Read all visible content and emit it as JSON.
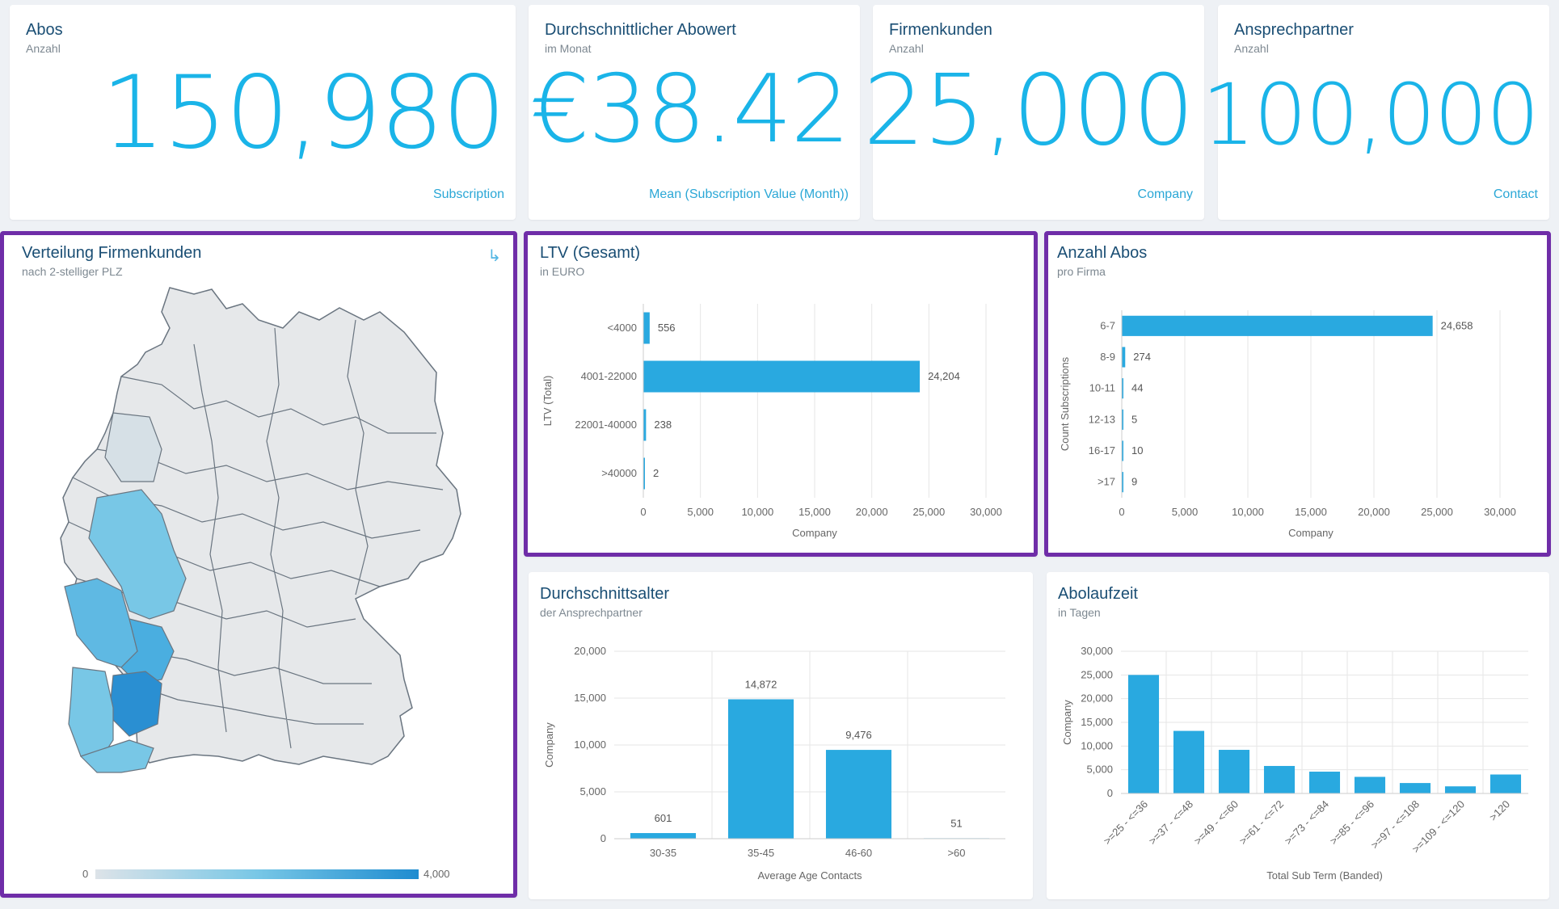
{
  "kpis": [
    {
      "title": "Abos",
      "subtitle": "Anzahl",
      "value": "150,980",
      "unit": "Subscription"
    },
    {
      "title": "Durchschnittlicher Abowert",
      "subtitle": "im Monat",
      "value": "€38.42",
      "unit": "Mean (Subscription Value (Month))"
    },
    {
      "title": "Firmenkunden",
      "subtitle": "Anzahl",
      "value": "25,000",
      "unit": "Company"
    },
    {
      "title": "Ansprechpartner",
      "subtitle": "Anzahl",
      "value": "100,000",
      "unit": "Contact"
    }
  ],
  "map": {
    "title": "Verteilung Firmenkunden",
    "subtitle": "nach 2-stelliger PLZ",
    "legend_min": "0",
    "legend_max": "4,000",
    "colors": {
      "low": "#dde3e8",
      "mid": "#78c7e6",
      "high": "#1e8cd0",
      "empty": "#e6e8ea",
      "stroke": "#6a7580"
    }
  },
  "panels": {
    "ltv": {
      "title": "LTV (Gesamt)",
      "subtitle": "in EURO"
    },
    "abos": {
      "title": "Anzahl Abos",
      "subtitle": "pro Firma"
    },
    "age": {
      "title": "Durchschnittsalter",
      "subtitle": "der Ansprechpartner"
    },
    "term": {
      "title": "Abolaufzeit",
      "subtitle": "in Tagen"
    }
  },
  "chart_data": [
    {
      "id": "ltv",
      "type": "bar",
      "orientation": "horizontal",
      "categories": [
        "<4000",
        "4001-22000",
        "22001-40000",
        ">40000"
      ],
      "values": [
        556,
        24204,
        238,
        2
      ],
      "labels": [
        "556",
        "24,204",
        "238",
        "2"
      ],
      "xlabel": "Company",
      "ylabel": "LTV (Total)",
      "xlim": [
        0,
        30000
      ],
      "ticks": [
        0,
        5000,
        10000,
        15000,
        20000,
        25000,
        30000
      ],
      "tick_labels": [
        "0",
        "5,000",
        "10,000",
        "15,000",
        "20,000",
        "25,000",
        "30,000"
      ]
    },
    {
      "id": "abos",
      "type": "bar",
      "orientation": "horizontal",
      "categories": [
        "6-7",
        "8-9",
        "10-11",
        "12-13",
        "16-17",
        ">17"
      ],
      "values": [
        24658,
        274,
        44,
        5,
        10,
        9
      ],
      "labels": [
        "24,658",
        "274",
        "44",
        "5",
        "10",
        "9"
      ],
      "xlabel": "Company",
      "ylabel": "Count Subscriptions",
      "xlim": [
        0,
        30000
      ],
      "ticks": [
        0,
        5000,
        10000,
        15000,
        20000,
        25000,
        30000
      ],
      "tick_labels": [
        "0",
        "5,000",
        "10,000",
        "15,000",
        "20,000",
        "25,000",
        "30,000"
      ]
    },
    {
      "id": "age",
      "type": "bar",
      "orientation": "vertical",
      "categories": [
        "30-35",
        "35-45",
        "46-60",
        ">60"
      ],
      "values": [
        601,
        14872,
        9476,
        51
      ],
      "labels": [
        "601",
        "14,872",
        "9,476",
        "51"
      ],
      "xlabel": "Average Age Contacts",
      "ylabel": "Company",
      "ylim": [
        0,
        20000
      ],
      "ticks": [
        0,
        5000,
        10000,
        15000,
        20000
      ],
      "tick_labels": [
        "0",
        "5,000",
        "10,000",
        "15,000",
        "20,000"
      ]
    },
    {
      "id": "term",
      "type": "bar",
      "orientation": "vertical",
      "categories": [
        ">=25 - <=36",
        ">=37 - <=48",
        ">=49 - <=60",
        ">=61 - <=72",
        ">=73 - <=84",
        ">=85 - <=96",
        ">=97 - <=108",
        ">=109 - <=120",
        ">120"
      ],
      "values": [
        25000,
        13200,
        9200,
        5800,
        4600,
        3500,
        2200,
        1500,
        4000
      ],
      "xlabel": "Total Sub Term (Banded)",
      "ylabel": "Company",
      "ylim": [
        0,
        30000
      ],
      "ticks": [
        0,
        5000,
        10000,
        15000,
        20000,
        25000,
        30000
      ],
      "tick_labels": [
        "0",
        "5,000",
        "10,000",
        "15,000",
        "20,000",
        "25,000",
        "30,000"
      ]
    }
  ]
}
